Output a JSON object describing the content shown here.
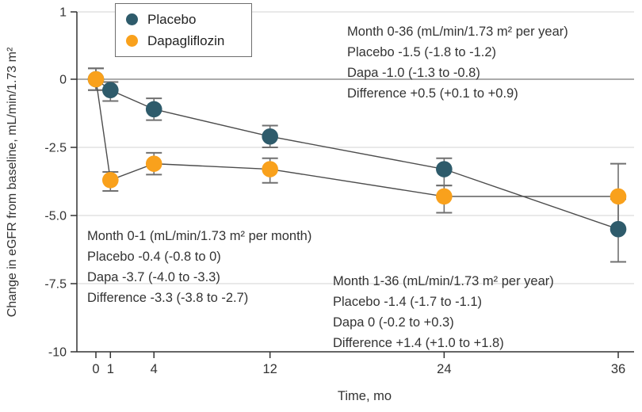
{
  "chart_data": {
    "type": "line",
    "title": "",
    "xlabel": "Time, mo",
    "ylabel": "Change in eGFR from baseline, mL/min/1.73 m²",
    "xlim": [
      0,
      36
    ],
    "ylim": [
      -10,
      1
    ],
    "grid": true,
    "legend_position": "top-left",
    "x_tick_labels": [
      "0",
      "1",
      "4",
      "12",
      "24",
      "36"
    ],
    "x_tick_values": [
      0,
      1,
      4,
      12,
      24,
      36
    ],
    "y_ticks": [
      {
        "label": "1",
        "value": 1
      },
      {
        "label": "0",
        "value": 0
      },
      {
        "label": "-2.5",
        "value": -2.5
      },
      {
        "label": "-5.0",
        "value": -5
      },
      {
        "label": "-7.5",
        "value": -7.5
      },
      {
        "label": "-10",
        "value": -10
      }
    ],
    "series": [
      {
        "name": "Placebo",
        "color": "#2E5B6B",
        "x": [
          0,
          1,
          4,
          12,
          24,
          36
        ],
        "y": [
          0,
          -0.4,
          -1.1,
          -2.1,
          -3.3,
          -5.5
        ],
        "err_lo": [
          -0.4,
          -0.8,
          -1.5,
          -2.5,
          -3.9,
          -6.7
        ],
        "err_hi": [
          0.4,
          -0.1,
          -0.7,
          -1.7,
          -2.9,
          -4.4
        ]
      },
      {
        "name": "Dapagliflozin",
        "color": "#F9A11C",
        "x": [
          0,
          1,
          4,
          12,
          24,
          36
        ],
        "y": [
          0,
          -3.7,
          -3.1,
          -3.3,
          -4.3,
          -4.3
        ],
        "err_lo": [
          -0.4,
          -4.1,
          -3.5,
          -3.8,
          -4.9,
          -5.5
        ],
        "err_hi": [
          0.4,
          -3.4,
          -2.7,
          -2.9,
          -3.9,
          -3.1
        ]
      }
    ],
    "annotations": [
      {
        "id": "month-0-36",
        "lines": [
          "Month 0-36 (mL/min/1.73 m² per year)",
          "Placebo -1.5 (-1.8 to -1.2)",
          "Dapa -1.0 (-1.3 to -0.8)",
          "Difference +0.5 (+0.1 to +0.9)"
        ]
      },
      {
        "id": "month-0-1",
        "lines": [
          "Month 0-1 (mL/min/1.73 m² per month)",
          "Placebo -0.4 (-0.8 to 0)",
          "Dapa -3.7 (-4.0 to -3.3)",
          "Difference -3.3 (-3.8 to -2.7)"
        ]
      },
      {
        "id": "month-1-36",
        "lines": [
          "Month 1-36 (mL/min/1.73 m² per year)",
          "Placebo -1.4 (-1.7 to -1.1)",
          "Dapa 0 (-0.2 to +0.3)",
          "Difference +1.4 (+1.0 to +1.8)"
        ]
      }
    ]
  },
  "colors": {
    "placebo": "#2E5B6B",
    "dapagliflozin": "#F9A11C",
    "axis": "#333333",
    "grid": "#e2e2e2",
    "zero_line": "#8f8f8f",
    "error_bar": "#707070",
    "series_line": "#4d4d4d",
    "text": "#333333",
    "legend_border": "#6e6e6e"
  }
}
